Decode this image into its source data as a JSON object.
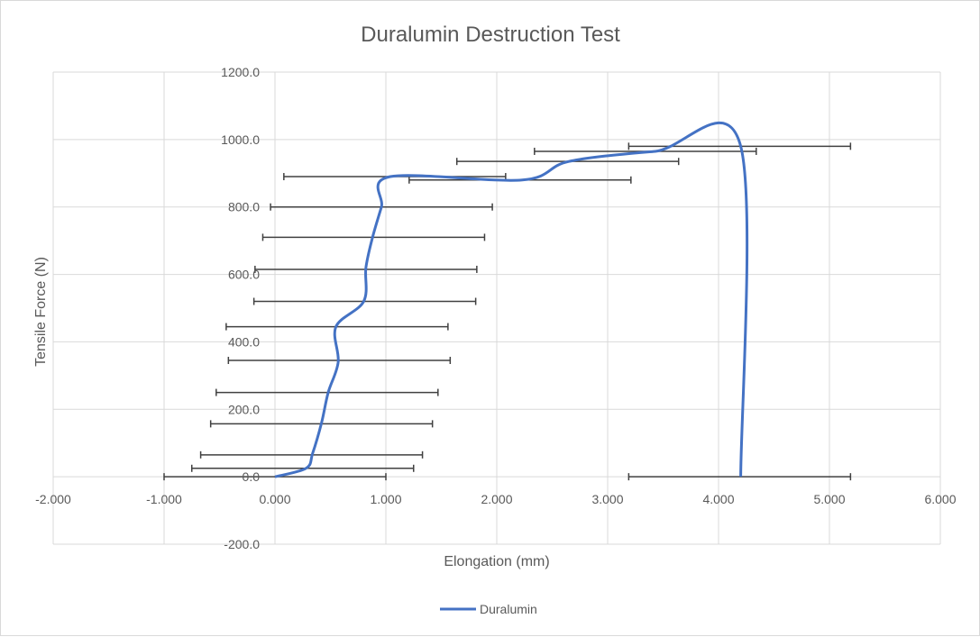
{
  "chart_data": {
    "type": "scatter",
    "title": "Duralumin Destruction Test",
    "xlabel": "Elongation (mm)",
    "ylabel": "Tensile Force (N)",
    "xlim": [
      -2,
      6
    ],
    "ylim": [
      -200,
      1200
    ],
    "xticks": [
      "-2.000",
      "-1.000",
      "0.000",
      "1.000",
      "2.000",
      "3.000",
      "4.000",
      "5.000",
      "6.000"
    ],
    "yticks": [
      "-200.0",
      "0.0",
      "200.0",
      "400.0",
      "600.0",
      "800.0",
      "1000.0",
      "1200.0"
    ],
    "grid": true,
    "legend_position": "bottom",
    "error_bar_x": 1.0,
    "series": [
      {
        "name": "Duralumin",
        "color": "#4472c4",
        "points": [
          [
            0.0,
            0.0
          ],
          [
            0.28,
            25
          ],
          [
            0.34,
            70
          ],
          [
            0.42,
            160
          ],
          [
            0.48,
            250
          ],
          [
            0.57,
            340
          ],
          [
            0.55,
            445
          ],
          [
            0.8,
            520
          ],
          [
            0.82,
            620
          ],
          [
            0.88,
            710
          ],
          [
            0.96,
            800
          ],
          [
            1.04,
            890
          ],
          [
            2.23,
            880
          ],
          [
            2.65,
            935
          ],
          [
            3.43,
            965
          ],
          [
            4.2,
            980
          ],
          [
            4.2,
            0
          ]
        ]
      }
    ],
    "error_bar_points": [
      [
        0.0,
        0.0
      ],
      [
        0.25,
        25
      ],
      [
        0.33,
        65
      ],
      [
        0.42,
        157
      ],
      [
        0.47,
        250
      ],
      [
        0.58,
        345
      ],
      [
        0.56,
        445
      ],
      [
        0.81,
        520
      ],
      [
        0.82,
        615
      ],
      [
        0.89,
        710
      ],
      [
        0.96,
        800
      ],
      [
        1.08,
        890
      ],
      [
        2.21,
        880
      ],
      [
        2.64,
        935
      ],
      [
        3.34,
        965
      ],
      [
        4.19,
        980
      ],
      [
        4.19,
        0
      ]
    ]
  }
}
